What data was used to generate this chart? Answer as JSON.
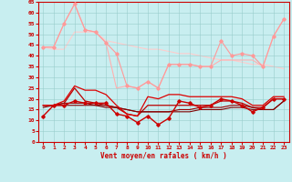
{
  "xlabel": "Vent moyen/en rafales ( km/h )",
  "x": [
    0,
    1,
    2,
    3,
    4,
    5,
    6,
    7,
    8,
    9,
    10,
    11,
    12,
    13,
    14,
    15,
    16,
    17,
    18,
    19,
    20,
    21,
    22,
    23
  ],
  "lines": [
    {
      "y": [
        44,
        44,
        55,
        64,
        52,
        51,
        46,
        41,
        26,
        25,
        28,
        25,
        36,
        36,
        36,
        35,
        35,
        47,
        40,
        41,
        40,
        35,
        49,
        57
      ],
      "color": "#ff9999",
      "lw": 0.8,
      "marker": "D",
      "ms": 1.8,
      "zorder": 3
    },
    {
      "y": [
        44,
        44,
        55,
        64,
        52,
        51,
        46,
        25,
        26,
        25,
        28,
        25,
        36,
        36,
        36,
        35,
        35,
        38,
        38,
        38,
        38,
        35,
        49,
        57
      ],
      "color": "#ffb0b0",
      "lw": 0.8,
      "marker": null,
      "ms": 0,
      "zorder": 2
    },
    {
      "y": [
        44,
        43,
        43,
        51,
        51,
        51,
        47,
        46,
        45,
        44,
        43,
        43,
        42,
        41,
        41,
        40,
        39,
        38,
        38,
        37,
        36,
        36,
        35,
        34
      ],
      "color": "#ffcccc",
      "lw": 0.8,
      "marker": null,
      "ms": 0,
      "zorder": 1
    },
    {
      "y": [
        12,
        17,
        17,
        19,
        18,
        18,
        18,
        13,
        12,
        9,
        12,
        8,
        11,
        19,
        18,
        16,
        17,
        20,
        19,
        17,
        14,
        16,
        20,
        20
      ],
      "color": "#cc0000",
      "lw": 1.0,
      "marker": "D",
      "ms": 1.8,
      "zorder": 6
    },
    {
      "y": [
        17,
        17,
        19,
        26,
        24,
        24,
        22,
        17,
        13,
        12,
        21,
        20,
        22,
        22,
        21,
        21,
        21,
        21,
        21,
        20,
        17,
        17,
        21,
        21
      ],
      "color": "#dd0000",
      "lw": 0.9,
      "marker": null,
      "ms": 0,
      "zorder": 5
    },
    {
      "y": [
        17,
        17,
        18,
        25,
        19,
        18,
        17,
        16,
        13,
        12,
        17,
        17,
        17,
        17,
        17,
        17,
        17,
        19,
        19,
        18,
        16,
        16,
        20,
        20
      ],
      "color": "#bb0000",
      "lw": 0.9,
      "marker": null,
      "ms": 0,
      "zorder": 4
    },
    {
      "y": [
        17,
        17,
        18,
        18,
        18,
        17,
        17,
        16,
        15,
        14,
        14,
        14,
        14,
        15,
        15,
        16,
        16,
        16,
        17,
        17,
        16,
        15,
        15,
        19
      ],
      "color": "#990000",
      "lw": 0.8,
      "marker": null,
      "ms": 0,
      "zorder": 4
    },
    {
      "y": [
        16,
        17,
        17,
        17,
        17,
        17,
        16,
        16,
        15,
        14,
        14,
        14,
        14,
        14,
        14,
        15,
        15,
        15,
        16,
        16,
        15,
        15,
        15,
        19
      ],
      "color": "#800000",
      "lw": 0.8,
      "marker": null,
      "ms": 0,
      "zorder": 4
    }
  ],
  "ylim": [
    0,
    65
  ],
  "yticks": [
    0,
    5,
    10,
    15,
    20,
    25,
    30,
    35,
    40,
    45,
    50,
    55,
    60,
    65
  ],
  "xlim": [
    -0.5,
    23.5
  ],
  "bg_color": "#c8eef0",
  "grid_color": "#99cccc",
  "tick_color": "#cc0000",
  "label_color": "#cc0000",
  "spine_color": "#cc0000",
  "font_size_tick": 4.5,
  "font_size_label": 5.5
}
